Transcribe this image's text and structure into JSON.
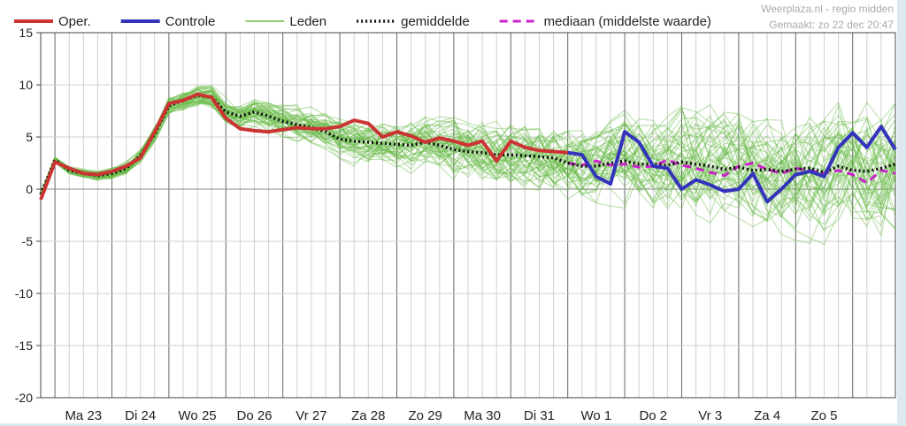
{
  "chart_data": {
    "type": "line",
    "source": "Weerplaza.nl - regio midden",
    "generated": "Gemaakt: zo 22 dec 20:47",
    "ylim": [
      -20,
      15
    ],
    "yticks": [
      15,
      10,
      5,
      0,
      -5,
      -10,
      -15,
      -20
    ],
    "xlim": [
      0,
      15
    ],
    "days": [
      "Ma 23",
      "Di 24",
      "Wo 25",
      "Do 26",
      "Vr 27",
      "Za 28",
      "Zo 29",
      "Ma 30",
      "Di 31",
      "Wo 1",
      "Do 2",
      "Vr 3",
      "Za 4",
      "Zo 5"
    ],
    "legend": [
      {
        "label": "Oper.",
        "color": "#cc3333",
        "style": "thick"
      },
      {
        "label": "Controle",
        "color": "#3333bb",
        "style": "thick"
      },
      {
        "label": "Leden",
        "color": "#66bb44",
        "style": "thin"
      },
      {
        "label": "gemiddelde",
        "color": "#111111",
        "style": "dotted"
      },
      {
        "label": "mediaan (middelste waarde)",
        "color": "#cc22cc",
        "style": "dashed"
      }
    ],
    "series": [
      {
        "name": "Oper.",
        "color": "#cc3333",
        "x": [
          0,
          0.25,
          0.5,
          0.75,
          1,
          1.25,
          1.5,
          1.75,
          2,
          2.25,
          2.5,
          2.75,
          3,
          3.25,
          3.5,
          3.75,
          4,
          4.25,
          4.5,
          4.75,
          5,
          5.25,
          5.5,
          5.75,
          6,
          6.25,
          6.5,
          6.75,
          7,
          7.25,
          7.5,
          7.75,
          8,
          8.25,
          8.5,
          8.75,
          9,
          9.25
        ],
        "y": [
          -1,
          2.6,
          2.0,
          1.5,
          1.4,
          1.7,
          2.2,
          3.0,
          5.5,
          8.2,
          8.5,
          9.1,
          8.8,
          6.8,
          5.8,
          5.6,
          5.5,
          5.7,
          5.9,
          5.8,
          5.8,
          6.0,
          6.6,
          6.3,
          5.0,
          5.5,
          5.1,
          4.5,
          4.9,
          4.6,
          4.2,
          4.6,
          2.7,
          4.6,
          4.0,
          3.7,
          3.6,
          3.5
        ]
      },
      {
        "name": "Controle",
        "color": "#3333bb",
        "x": [
          9.25,
          9.5,
          9.75,
          10,
          10.25,
          10.5,
          10.75,
          11,
          11.25,
          11.5,
          11.75,
          12,
          12.25,
          12.5,
          12.75,
          13,
          13.25,
          13.5,
          13.75,
          14,
          14.25,
          14.5,
          14.75,
          15
        ],
        "y": [
          3.5,
          3.3,
          1.2,
          0.5,
          5.5,
          4.5,
          2.2,
          2.0,
          0.0,
          0.9,
          0.4,
          -0.2,
          0.0,
          1.5,
          -1.2,
          0.0,
          1.4,
          1.7,
          1.2,
          4.0,
          5.4,
          4.0,
          6.0,
          3.8
        ]
      },
      {
        "name": "gemiddelde",
        "color": "#111111",
        "x": [
          0,
          0.25,
          0.5,
          0.75,
          1,
          1.25,
          1.5,
          1.75,
          2,
          2.25,
          2.5,
          2.75,
          3,
          3.25,
          3.5,
          3.75,
          4,
          4.25,
          4.5,
          4.75,
          5,
          5.25,
          5.5,
          5.75,
          6,
          6.25,
          6.5,
          6.75,
          7,
          7.25,
          7.5,
          7.75,
          8,
          8.25,
          8.5,
          8.75,
          9,
          9.25,
          9.5,
          9.75,
          10,
          10.25,
          10.5,
          10.75,
          11,
          11.25,
          11.5,
          11.75,
          12,
          12.25,
          12.5,
          12.75,
          13,
          13.25,
          13.5,
          13.75,
          14,
          14.25,
          14.5,
          14.75,
          15
        ],
        "y": [
          -0.5,
          2.8,
          1.8,
          1.5,
          1.3,
          1.5,
          2.0,
          3.2,
          5.3,
          8.0,
          8.5,
          9.0,
          8.8,
          7.4,
          7.0,
          7.4,
          7.0,
          6.5,
          6.2,
          5.9,
          5.5,
          4.8,
          4.6,
          4.5,
          4.4,
          4.3,
          4.2,
          4.5,
          4.2,
          3.8,
          3.6,
          3.5,
          3.3,
          3.3,
          3.2,
          3.1,
          3.0,
          2.5,
          2.2,
          2.2,
          2.5,
          2.7,
          2.4,
          2.4,
          2.3,
          2.6,
          2.4,
          2.2,
          1.9,
          2.1,
          1.8,
          1.9,
          1.7,
          1.9,
          2.0,
          1.6,
          2.2,
          1.8,
          1.7,
          2.0,
          2.4
        ]
      },
      {
        "name": "mediaan (middelste waarde)",
        "color": "#cc22cc",
        "x": [
          9.25,
          9.5,
          9.75,
          10,
          10.25,
          10.5,
          10.75,
          11,
          11.25,
          11.5,
          11.75,
          12,
          12.25,
          12.5,
          12.75,
          13,
          13.25,
          13.5,
          13.75,
          14,
          14.25,
          14.5,
          14.75,
          15
        ],
        "y": [
          2.5,
          2.3,
          2.7,
          2.3,
          2.4,
          2.1,
          2.2,
          2.8,
          2.3,
          2.0,
          1.6,
          1.3,
          2.2,
          2.5,
          1.9,
          1.5,
          2.0,
          1.8,
          1.5,
          1.8,
          1.4,
          0.6,
          1.8,
          1.5
        ]
      }
    ]
  }
}
